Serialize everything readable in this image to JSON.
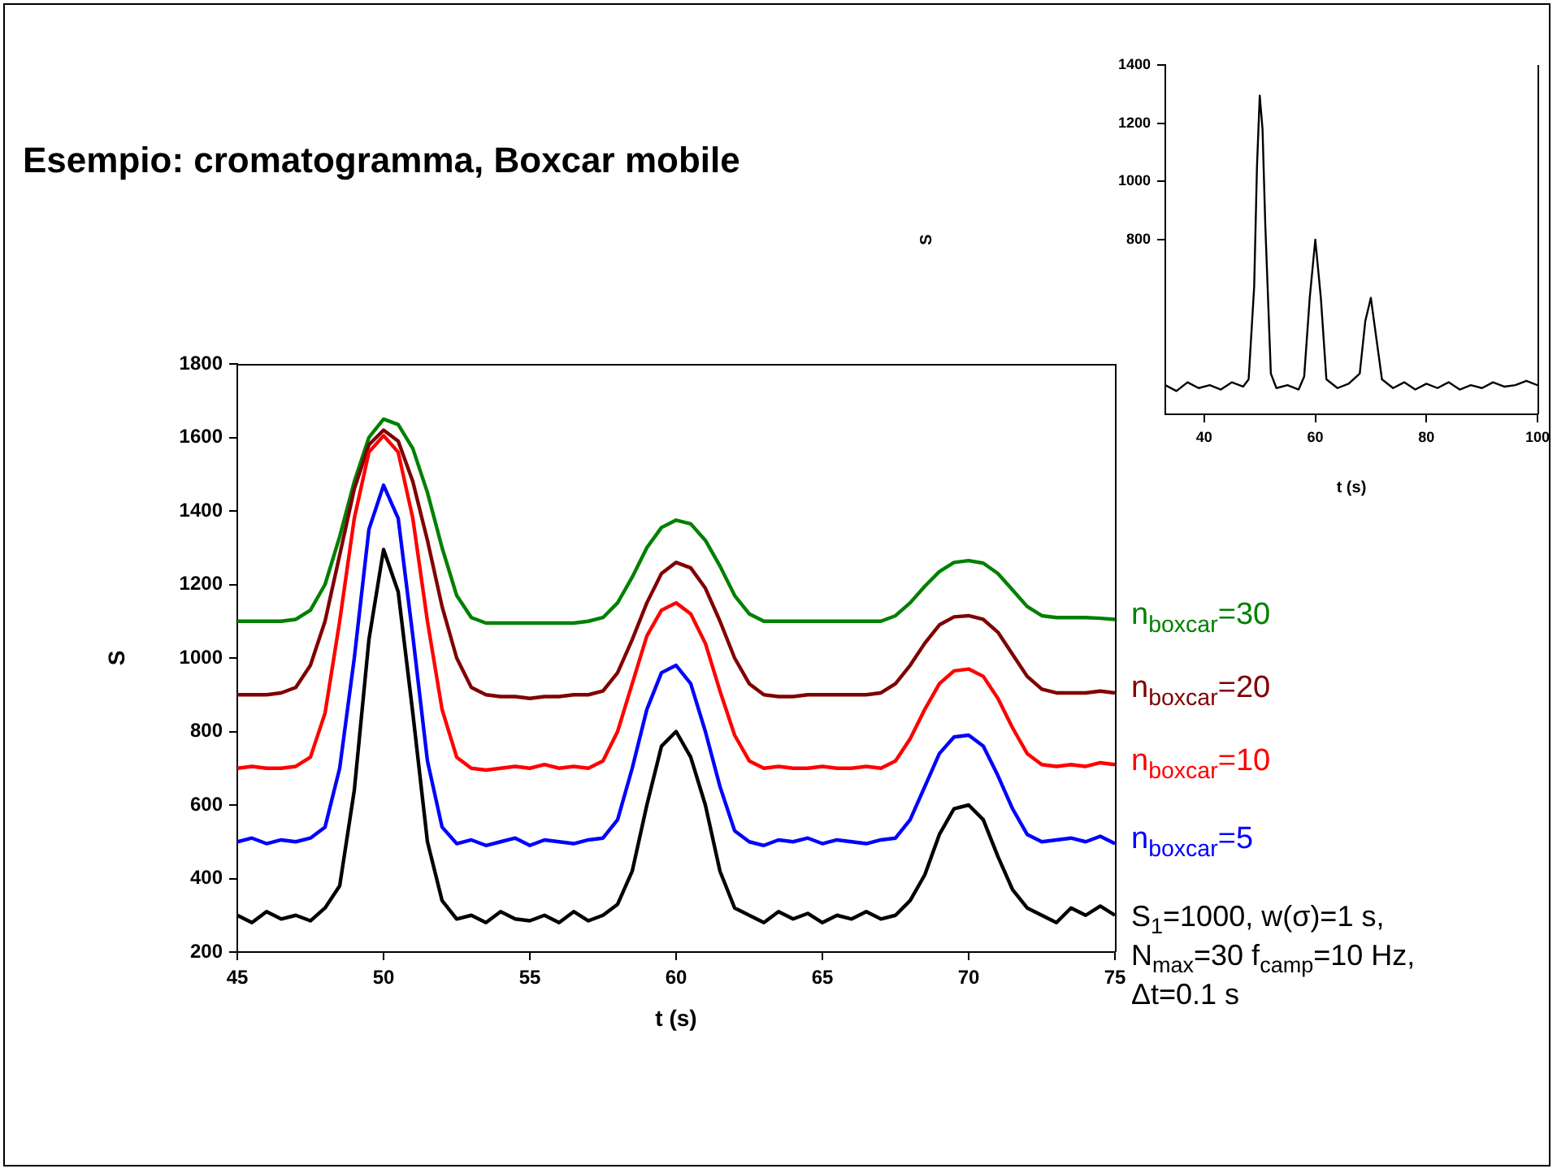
{
  "chart_data": [
    {
      "type": "line",
      "title": "Esempio: cromatogramma, Boxcar mobile",
      "xlabel": "t (s)",
      "ylabel": "S",
      "xlim": [
        45,
        75
      ],
      "xticks": [
        45,
        50,
        55,
        60,
        65,
        70,
        75
      ],
      "ylim": [
        200,
        1800
      ],
      "yticks": [
        200,
        400,
        600,
        800,
        1000,
        1200,
        1400,
        1600,
        1800
      ],
      "grid": false,
      "legend": false,
      "marker": "none",
      "line_style": "solid",
      "annotations": [
        "S$_{1}$=1000, w(σ)=1 s, N$_{max}$=30 f$_{camp}$=10 Hz, Δt=0.1 s"
      ],
      "x": [
        45,
        45.5,
        46,
        46.5,
        47,
        47.5,
        48,
        48.5,
        49,
        49.5,
        50,
        50.5,
        51,
        51.5,
        52,
        52.5,
        53,
        53.5,
        54,
        54.5,
        55,
        55.5,
        56,
        56.5,
        57,
        57.5,
        58,
        58.5,
        59,
        59.5,
        60,
        60.5,
        61,
        61.5,
        62,
        62.5,
        63,
        63.5,
        64,
        64.5,
        65,
        65.5,
        66,
        66.5,
        67,
        67.5,
        68,
        68.5,
        69,
        69.5,
        70,
        70.5,
        71,
        71.5,
        72,
        72.5,
        73,
        73.5,
        74,
        74.5,
        75
      ],
      "series": [
        {
          "color": "#000000",
          "values": [
            300,
            280,
            310,
            290,
            300,
            285,
            320,
            380,
            640,
            1050,
            1295,
            1180,
            850,
            500,
            340,
            290,
            300,
            280,
            310,
            290,
            285,
            300,
            280,
            310,
            285,
            300,
            330,
            420,
            600,
            760,
            800,
            730,
            600,
            420,
            320,
            300,
            280,
            310,
            290,
            305,
            280,
            300,
            290,
            310,
            290,
            300,
            340,
            410,
            520,
            590,
            600,
            560,
            460,
            370,
            320,
            300,
            280,
            320,
            300,
            325,
            300
          ]
        },
        {
          "name": "n$_{boxcar}$=5",
          "color": "#0000ff",
          "values": [
            500,
            510,
            495,
            505,
            500,
            510,
            540,
            700,
            1000,
            1350,
            1470,
            1380,
            1060,
            720,
            540,
            495,
            505,
            490,
            500,
            510,
            490,
            505,
            500,
            495,
            505,
            510,
            560,
            700,
            860,
            960,
            980,
            930,
            800,
            650,
            530,
            500,
            490,
            505,
            500,
            510,
            495,
            505,
            500,
            495,
            505,
            510,
            560,
            650,
            740,
            785,
            790,
            760,
            680,
            590,
            520,
            500,
            505,
            510,
            500,
            515,
            495
          ]
        },
        {
          "name": "n$_{boxcar}$=10",
          "color": "#ff0000",
          "values": [
            700,
            705,
            700,
            700,
            705,
            730,
            850,
            1100,
            1380,
            1560,
            1605,
            1560,
            1380,
            1100,
            860,
            730,
            700,
            695,
            700,
            705,
            700,
            710,
            700,
            705,
            700,
            720,
            800,
            930,
            1060,
            1130,
            1150,
            1120,
            1040,
            910,
            790,
            720,
            700,
            705,
            700,
            700,
            705,
            700,
            700,
            705,
            700,
            720,
            780,
            860,
            930,
            965,
            970,
            950,
            890,
            810,
            740,
            710,
            705,
            710,
            705,
            715,
            710
          ]
        },
        {
          "name": "n$_{boxcar}$=20",
          "color": "#800000",
          "values": [
            900,
            900,
            900,
            905,
            920,
            980,
            1100,
            1280,
            1460,
            1580,
            1620,
            1590,
            1480,
            1320,
            1140,
            1000,
            920,
            900,
            895,
            895,
            890,
            895,
            895,
            900,
            900,
            910,
            960,
            1050,
            1150,
            1230,
            1260,
            1245,
            1190,
            1100,
            1000,
            930,
            900,
            895,
            895,
            900,
            900,
            900,
            900,
            900,
            905,
            930,
            980,
            1040,
            1090,
            1112,
            1115,
            1105,
            1070,
            1010,
            950,
            915,
            905,
            905,
            905,
            910,
            905
          ]
        },
        {
          "name": "n$_{boxcar}$=30",
          "color": "#008000",
          "values": [
            1100,
            1100,
            1100,
            1100,
            1105,
            1130,
            1200,
            1330,
            1480,
            1600,
            1650,
            1635,
            1570,
            1450,
            1300,
            1170,
            1110,
            1095,
            1095,
            1095,
            1095,
            1095,
            1095,
            1095,
            1100,
            1110,
            1150,
            1220,
            1300,
            1355,
            1375,
            1365,
            1320,
            1250,
            1170,
            1120,
            1100,
            1100,
            1100,
            1100,
            1100,
            1100,
            1100,
            1100,
            1100,
            1115,
            1150,
            1195,
            1235,
            1260,
            1265,
            1258,
            1230,
            1185,
            1140,
            1115,
            1110,
            1110,
            1110,
            1108,
            1105
          ]
        }
      ]
    },
    {
      "type": "line",
      "xlabel": "t (s)",
      "ylabel": "S",
      "xlim": [
        33,
        100
      ],
      "xticks": [
        40,
        60,
        80,
        100
      ],
      "ylim": [
        200,
        1400
      ],
      "yticks": [
        800,
        1000,
        1200,
        1400
      ],
      "grid": false,
      "legend": false,
      "marker": "none",
      "line_style": "solid",
      "x": [
        33,
        35,
        37,
        39,
        41,
        43,
        45,
        47,
        48,
        49,
        49.5,
        50,
        50.5,
        51,
        52,
        53,
        55,
        57,
        58,
        59,
        60,
        61,
        62,
        64,
        66,
        68,
        69,
        70,
        71,
        72,
        74,
        76,
        78,
        80,
        82,
        84,
        86,
        88,
        90,
        92,
        94,
        96,
        98,
        100
      ],
      "series": [
        {
          "color": "#000000",
          "values": [
            300,
            280,
            310,
            290,
            300,
            285,
            310,
            295,
            320,
            640,
            1050,
            1295,
            1180,
            850,
            340,
            290,
            300,
            285,
            330,
            600,
            800,
            600,
            320,
            290,
            305,
            340,
            520,
            600,
            460,
            320,
            290,
            310,
            285,
            305,
            290,
            310,
            285,
            300,
            290,
            310,
            295,
            300,
            315,
            300
          ]
        }
      ]
    }
  ]
}
